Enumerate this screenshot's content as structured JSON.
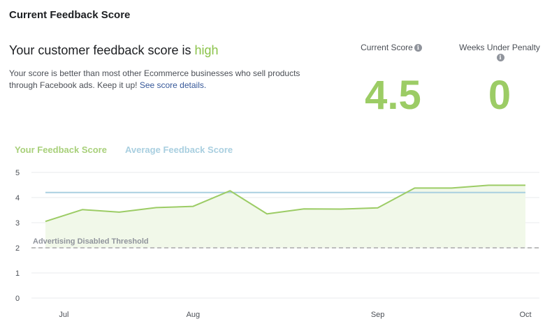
{
  "header": {
    "title": "Current Feedback Score"
  },
  "summary": {
    "headline_prefix": "Your customer feedback score is",
    "headline_level": "high",
    "description": "Your score is better than most other Ecommerce businesses who sell products through Facebook ads. Keep it up!",
    "details_link": "See score details."
  },
  "metrics": {
    "current_score_label": "Current Score",
    "current_score_value": "4.5",
    "weeks_label": "Weeks Under Penalty",
    "weeks_value": "0",
    "info_icon": "info-icon"
  },
  "colors": {
    "score_line": "#9ccc65",
    "score_fill": "#f1f8e9",
    "average_line": "#a9cfe0",
    "threshold_line": "#bdbdbd",
    "grid": "#e9ebee"
  },
  "chart_data": {
    "type": "line",
    "ylim": [
      0,
      5
    ],
    "yticks": [
      "0",
      "1",
      "2",
      "3",
      "4",
      "5"
    ],
    "x_labels": [
      "Jul",
      "Aug",
      "Sep",
      "Oct"
    ],
    "x_label_positions": [
      0.5,
      4.0,
      9.0,
      13.0
    ],
    "x": [
      0,
      1,
      2,
      3,
      4,
      5,
      6,
      7,
      8,
      9,
      10,
      11,
      12,
      13
    ],
    "series": [
      {
        "name": "Your Feedback Score",
        "values": [
          3.05,
          3.52,
          3.42,
          3.6,
          3.65,
          4.27,
          3.35,
          3.55,
          3.54,
          3.59,
          4.38,
          4.38,
          4.49,
          4.49
        ]
      },
      {
        "name": "Average Feedback Score",
        "values": [
          4.2,
          4.2,
          4.2,
          4.2,
          4.2,
          4.2,
          4.2,
          4.2,
          4.2,
          4.2,
          4.2,
          4.2,
          4.2,
          4.2
        ]
      }
    ],
    "threshold": {
      "label": "Advertising Disabled Threshold",
      "value": 2
    },
    "grid": true,
    "legend_position": "top-left"
  }
}
